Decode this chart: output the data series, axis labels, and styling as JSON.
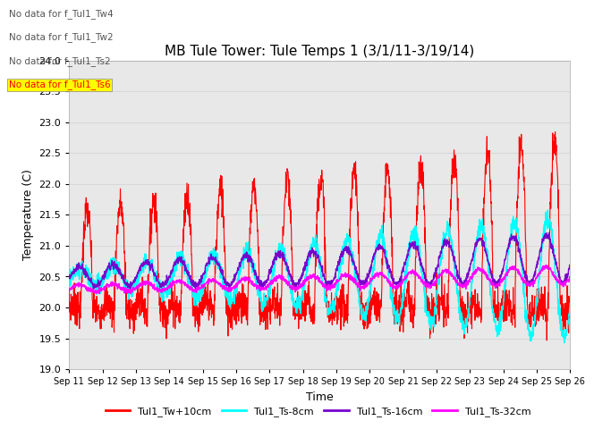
{
  "title": "MB Tule Tower: Tule Temps 1 (3/1/11-3/19/14)",
  "xlabel": "Time",
  "ylabel": "Temperature (C)",
  "ylim": [
    19.0,
    24.0
  ],
  "yticks": [
    19.0,
    19.5,
    20.0,
    20.5,
    21.0,
    21.5,
    22.0,
    22.5,
    23.0,
    23.5,
    24.0
  ],
  "xtick_labels": [
    "Sep 11",
    "Sep 12",
    "Sep 13",
    "Sep 14",
    "Sep 15",
    "Sep 16",
    "Sep 17",
    "Sep 18",
    "Sep 19",
    "Sep 20",
    "Sep 21",
    "Sep 22",
    "Sep 23",
    "Sep 24",
    "Sep 25",
    "Sep 26"
  ],
  "colors": {
    "tw10cm": "#ff0000",
    "ts8cm": "#00ffff",
    "ts16cm": "#7700cc",
    "ts32cm": "#ff00ff"
  },
  "legend_labels": [
    "Tul1_Tw+10cm",
    "Tul1_Ts-8cm",
    "Tul1_Ts-16cm",
    "Tul1_Ts-32cm"
  ],
  "no_data_text": [
    "No data for f_Tul1_Tw4",
    "No data for f_Tul1_Tw2",
    "No data for f_Tul1_Ts2",
    "No data for f_Tul1_Ts6"
  ],
  "grid_color": "#d8d8d8",
  "background_color": "#e8e8e8",
  "title_fontsize": 11,
  "axis_label_fontsize": 9,
  "tick_fontsize": 8,
  "xtick_fontsize": 7
}
